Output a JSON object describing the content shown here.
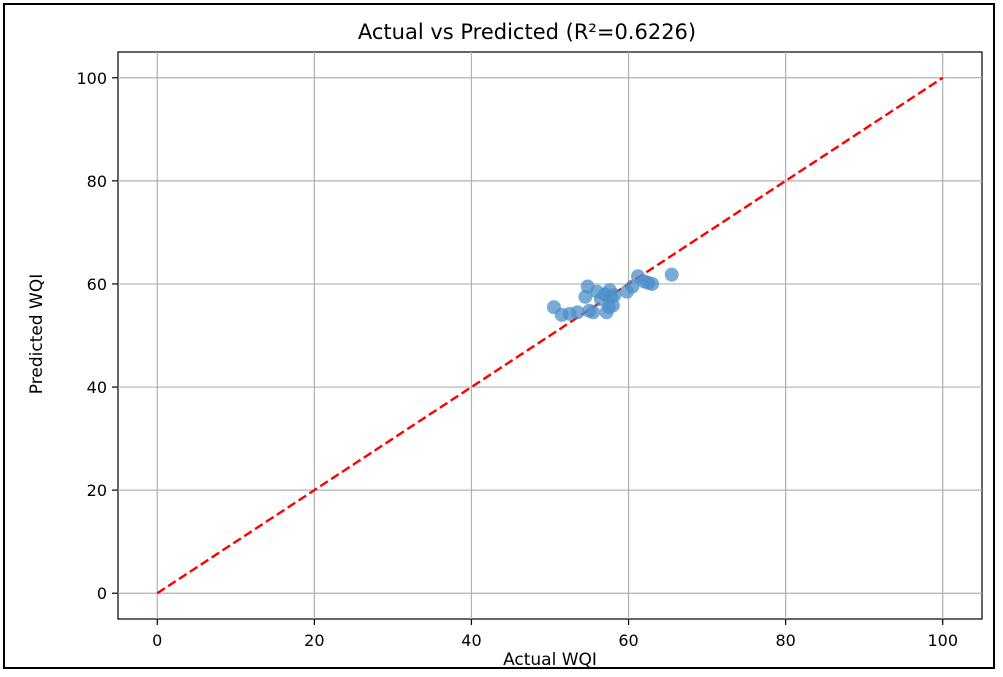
{
  "chart_data": {
    "type": "scatter",
    "title": "Actual vs Predicted (R²=0.6226)",
    "xlabel": "Actual WQI",
    "ylabel": "Predicted WQI",
    "xlim": [
      -5,
      105
    ],
    "ylim": [
      -5,
      105
    ],
    "xticks": [
      0,
      20,
      40,
      60,
      80,
      100
    ],
    "yticks": [
      0,
      20,
      40,
      60,
      80,
      100
    ],
    "grid": true,
    "colors": {
      "points": "#4c8fc9",
      "reference_line": "#ff0000",
      "grid": "#b0b0b0"
    },
    "reference_line": {
      "style": "dashed",
      "from": [
        0,
        0
      ],
      "to": [
        100,
        100
      ]
    },
    "series": [
      {
        "points": [
          [
            50.5,
            55.5
          ],
          [
            51.5,
            54.0
          ],
          [
            52.5,
            54.2
          ],
          [
            53.5,
            54.5
          ],
          [
            54.5,
            57.5
          ],
          [
            54.8,
            59.5
          ],
          [
            55.0,
            54.8
          ],
          [
            55.5,
            54.5
          ],
          [
            56.0,
            58.5
          ],
          [
            56.5,
            57.0
          ],
          [
            57.0,
            58.0
          ],
          [
            57.2,
            54.5
          ],
          [
            57.5,
            55.5
          ],
          [
            57.6,
            58.8
          ],
          [
            57.8,
            57.5
          ],
          [
            58.0,
            55.8
          ],
          [
            58.2,
            57.8
          ],
          [
            59.8,
            58.5
          ],
          [
            60.5,
            59.5
          ],
          [
            61.2,
            61.5
          ],
          [
            62.0,
            60.5
          ],
          [
            62.5,
            60.2
          ],
          [
            63.0,
            60.0
          ],
          [
            65.5,
            61.8
          ]
        ]
      }
    ]
  }
}
